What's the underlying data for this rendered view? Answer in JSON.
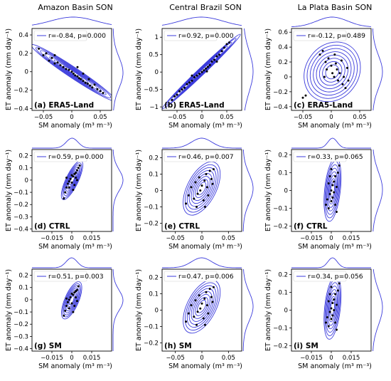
{
  "colors": {
    "contour": "#3b3bdc",
    "marginal": "#3b3bdc",
    "points": "#000000"
  },
  "chart_data": {
    "type": "scatter",
    "grid": false,
    "column_titles": [
      "Amazon Basin SON",
      "Central Brazil SON",
      "La Plata Basin SON"
    ],
    "xlabel": "SM anomaly (m³ m⁻³)",
    "ylabel": "ET anomaly (mm day⁻¹)",
    "legend_location": "upper-left",
    "panels": [
      {
        "label": "(a) ERA5-Land",
        "legend": "r=-0.84, p=0.000",
        "xlim": [
          -0.07,
          0.07
        ],
        "xticks": [
          -0.05,
          0,
          0.05
        ],
        "xticklabels": [
          "−0.05",
          "0",
          "0.05"
        ],
        "ylim": [
          -0.42,
          0.47
        ],
        "yticks": [
          -0.4,
          -0.2,
          0,
          0.2,
          0.4
        ],
        "yticklabels": [
          "−0.4",
          "−0.2",
          "0",
          "0.2",
          "0.4"
        ],
        "points": [
          [
            -0.058,
            0.25
          ],
          [
            -0.05,
            0.18
          ],
          [
            -0.045,
            0.2
          ],
          [
            -0.04,
            0.12
          ],
          [
            -0.035,
            0.15
          ],
          [
            -0.03,
            0.09
          ],
          [
            -0.025,
            0.1
          ],
          [
            -0.02,
            0.07
          ],
          [
            -0.015,
            0.05
          ],
          [
            -0.01,
            0.03
          ],
          [
            -0.005,
            0.02
          ],
          [
            0.0,
            0.0
          ],
          [
            0.003,
            -0.02
          ],
          [
            0.006,
            -0.04
          ],
          [
            0.01,
            -0.05
          ],
          [
            0.013,
            -0.07
          ],
          [
            0.016,
            -0.08
          ],
          [
            0.02,
            -0.1
          ],
          [
            0.024,
            -0.12
          ],
          [
            0.028,
            -0.13
          ],
          [
            0.032,
            -0.15
          ],
          [
            0.036,
            -0.17
          ],
          [
            0.04,
            -0.14
          ],
          [
            0.045,
            -0.19
          ],
          [
            0.05,
            -0.21
          ],
          [
            0.055,
            -0.23
          ],
          [
            -0.03,
            0.18
          ],
          [
            0.01,
            0.05
          ],
          [
            0.02,
            -0.02
          ],
          [
            0.03,
            -0.08
          ]
        ]
      },
      {
        "label": "(b) ERA5-Land",
        "legend": "r=0.92, p=0.000",
        "xlim": [
          -0.08,
          0.08
        ],
        "xticks": [
          -0.05,
          0,
          0.05
        ],
        "xticklabels": [
          "−0.05",
          "0",
          "0.05"
        ],
        "ylim": [
          -1.1,
          1.25
        ],
        "yticks": [
          -1,
          -0.5,
          0,
          0.5,
          1
        ],
        "yticklabels": [
          "−1",
          "−0.5",
          "0",
          "0.5",
          "1"
        ],
        "points": [
          [
            -0.06,
            -0.8
          ],
          [
            -0.055,
            -0.7
          ],
          [
            -0.05,
            -0.65
          ],
          [
            -0.045,
            -0.55
          ],
          [
            -0.04,
            -0.5
          ],
          [
            -0.035,
            -0.45
          ],
          [
            -0.03,
            -0.35
          ],
          [
            -0.025,
            -0.3
          ],
          [
            -0.02,
            -0.25
          ],
          [
            -0.015,
            -0.15
          ],
          [
            -0.01,
            -0.1
          ],
          [
            -0.005,
            -0.05
          ],
          [
            0.0,
            0.0
          ],
          [
            0.004,
            0.05
          ],
          [
            0.008,
            0.1
          ],
          [
            0.012,
            0.15
          ],
          [
            0.016,
            0.2
          ],
          [
            0.02,
            0.3
          ],
          [
            0.025,
            0.35
          ],
          [
            0.03,
            0.45
          ],
          [
            0.035,
            0.5
          ],
          [
            0.04,
            0.6
          ],
          [
            0.045,
            0.7
          ],
          [
            0.05,
            0.8
          ],
          [
            0.055,
            0.85
          ],
          [
            -0.02,
            -0.1
          ],
          [
            0.01,
            0.02
          ],
          [
            0.03,
            0.3
          ]
        ]
      },
      {
        "label": "(c) ERA5-Land",
        "legend": "r=-0.12, p=0.489",
        "xlim": [
          -0.07,
          0.07
        ],
        "xticks": [
          -0.05,
          0,
          0.05
        ],
        "xticklabels": [
          "−0.05",
          "0",
          "0.05"
        ],
        "ylim": [
          -0.45,
          0.65
        ],
        "yticks": [
          -0.4,
          -0.2,
          0,
          0.2,
          0.4,
          0.6
        ],
        "yticklabels": [
          "−0.4",
          "−0.2",
          "0",
          "0.2",
          "0.4",
          "0.6"
        ],
        "points": [
          [
            -0.05,
            -0.28
          ],
          [
            -0.045,
            -0.25
          ],
          [
            -0.02,
            0.3
          ],
          [
            -0.015,
            0.35
          ],
          [
            -0.01,
            0.2
          ],
          [
            -0.008,
            0.1
          ],
          [
            -0.005,
            0.25
          ],
          [
            0.0,
            0.15
          ],
          [
            0.002,
            0.05
          ],
          [
            0.005,
            0.0
          ],
          [
            0.008,
            0.18
          ],
          [
            0.01,
            0.1
          ],
          [
            0.012,
            -0.05
          ],
          [
            0.015,
            0.05
          ],
          [
            0.018,
            0.22
          ],
          [
            0.02,
            -0.1
          ],
          [
            0.022,
            0.0
          ],
          [
            0.025,
            -0.15
          ],
          [
            0.03,
            -0.05
          ],
          [
            -0.012,
            0.0
          ],
          [
            0.006,
            0.3
          ],
          [
            0.028,
            0.12
          ]
        ]
      },
      {
        "label": "(d) CTRL",
        "legend": "r=0.59, p=0.000",
        "xlim": [
          -0.03,
          0.03
        ],
        "xticks": [
          -0.015,
          0,
          0.015
        ],
        "xticklabels": [
          "−0.015",
          "0",
          "0.015"
        ],
        "ylim": [
          -0.42,
          0.25
        ],
        "yticks": [
          -0.4,
          -0.3,
          -0.2,
          -0.1,
          0,
          0.1,
          0.2
        ],
        "yticklabels": [
          "−0.4",
          "−0.3",
          "−0.2",
          "−0.1",
          "0",
          "0.1",
          "0.2"
        ],
        "points": [
          [
            -0.006,
            -0.15
          ],
          [
            -0.005,
            -0.1
          ],
          [
            -0.004,
            -0.06
          ],
          [
            -0.003,
            -0.03
          ],
          [
            -0.002,
            -0.01
          ],
          [
            -0.001,
            0.01
          ],
          [
            0.0,
            -0.02
          ],
          [
            0.001,
            0.03
          ],
          [
            0.002,
            0.05
          ],
          [
            0.003,
            0.02
          ],
          [
            0.004,
            0.08
          ],
          [
            0.005,
            0.1
          ],
          [
            0.006,
            0.12
          ],
          [
            -0.002,
            -0.06
          ],
          [
            0.0,
            0.04
          ],
          [
            0.002,
            -0.04
          ],
          [
            0.003,
            0.06
          ],
          [
            -0.004,
            0.02
          ],
          [
            0.001,
            -0.08
          ],
          [
            0.004,
            0.0
          ]
        ]
      },
      {
        "label": "(e) CTRL",
        "legend": "r=0.46, p=0.007",
        "xlim": [
          -0.075,
          0.075
        ],
        "xticks": [
          -0.05,
          0,
          0.05
        ],
        "xticklabels": [
          "−0.05",
          "0",
          "0.05"
        ],
        "ylim": [
          -0.25,
          0.25
        ],
        "yticks": [
          -0.2,
          -0.1,
          0,
          0.1,
          0.2
        ],
        "yticklabels": [
          "−0.2",
          "−0.1",
          "0",
          "0.1",
          "0.2"
        ],
        "points": [
          [
            -0.03,
            -0.08
          ],
          [
            -0.025,
            -0.03
          ],
          [
            -0.02,
            0.02
          ],
          [
            -0.015,
            -0.05
          ],
          [
            -0.012,
            0.05
          ],
          [
            -0.008,
            -0.02
          ],
          [
            -0.005,
            0.08
          ],
          [
            -0.003,
            0.0
          ],
          [
            0.0,
            0.03
          ],
          [
            0.003,
            -0.06
          ],
          [
            0.005,
            0.06
          ],
          [
            0.008,
            0.1
          ],
          [
            0.01,
            0.02
          ],
          [
            0.012,
            -0.03
          ],
          [
            0.015,
            0.12
          ],
          [
            0.018,
            0.07
          ],
          [
            0.02,
            0.04
          ],
          [
            0.022,
            0.13
          ],
          [
            -0.01,
            -0.1
          ],
          [
            0.006,
            -0.1
          ]
        ]
      },
      {
        "label": "(f) CTRL",
        "legend": "r=0.33, p=0.065",
        "xlim": [
          -0.03,
          0.03
        ],
        "xticks": [
          -0.015,
          0,
          0.015
        ],
        "xticklabels": [
          "−0.015",
          "0",
          "0.015"
        ],
        "ylim": [
          -0.23,
          0.23
        ],
        "yticks": [
          -0.2,
          -0.1,
          0,
          0.1,
          0.2
        ],
        "yticklabels": [
          "−0.2",
          "−0.1",
          "0",
          "0.1",
          "0.2"
        ],
        "points": [
          [
            -0.004,
            -0.08
          ],
          [
            -0.003,
            -0.05
          ],
          [
            -0.002,
            -0.1
          ],
          [
            -0.001,
            -0.02
          ],
          [
            0.0,
            0.0
          ],
          [
            0.0,
            -0.06
          ],
          [
            0.001,
            0.03
          ],
          [
            0.001,
            -0.04
          ],
          [
            0.002,
            0.05
          ],
          [
            0.002,
            -0.01
          ],
          [
            0.003,
            0.08
          ],
          [
            0.004,
            0.02
          ],
          [
            0.005,
            0.1
          ],
          [
            -0.002,
            0.04
          ],
          [
            0.003,
            -0.08
          ],
          [
            0.006,
            0.14
          ],
          [
            -0.001,
            0.08
          ],
          [
            0.004,
            -0.12
          ],
          [
            0.0,
            0.12
          ]
        ]
      },
      {
        "label": "(g) SM",
        "legend": "r=0.51, p=0.003",
        "xlim": [
          -0.03,
          0.03
        ],
        "xticks": [
          -0.015,
          0,
          0.015
        ],
        "xticklabels": [
          "−0.015",
          "0",
          "0.015"
        ],
        "ylim": [
          -0.42,
          0.25
        ],
        "yticks": [
          -0.4,
          -0.3,
          -0.2,
          -0.1,
          0,
          0.1,
          0.2
        ],
        "yticklabels": [
          "−0.4",
          "−0.3",
          "−0.2",
          "−0.1",
          "0",
          "0.1",
          "0.2"
        ],
        "points": [
          [
            -0.006,
            -0.13
          ],
          [
            -0.005,
            -0.09
          ],
          [
            -0.004,
            -0.05
          ],
          [
            -0.003,
            -0.02
          ],
          [
            -0.002,
            0.0
          ],
          [
            -0.001,
            0.02
          ],
          [
            0.0,
            -0.03
          ],
          [
            0.001,
            0.04
          ],
          [
            0.002,
            0.06
          ],
          [
            0.003,
            0.02
          ],
          [
            0.004,
            0.08
          ],
          [
            0.005,
            0.11
          ],
          [
            -0.002,
            -0.07
          ],
          [
            0.0,
            0.05
          ],
          [
            0.002,
            -0.05
          ],
          [
            0.003,
            0.07
          ],
          [
            -0.004,
            0.01
          ],
          [
            0.001,
            -0.1
          ],
          [
            0.004,
            -0.01
          ]
        ]
      },
      {
        "label": "(h) SM",
        "legend": "r=0.47, p=0.006",
        "xlim": [
          -0.075,
          0.075
        ],
        "xticks": [
          -0.05,
          0,
          0.05
        ],
        "xticklabels": [
          "−0.05",
          "0",
          "0.05"
        ],
        "ylim": [
          -0.25,
          0.25
        ],
        "yticks": [
          -0.2,
          -0.1,
          0,
          0.1,
          0.2
        ],
        "yticklabels": [
          "−0.2",
          "−0.1",
          "0",
          "0.1",
          "0.2"
        ],
        "points": [
          [
            -0.03,
            -0.07
          ],
          [
            -0.025,
            -0.02
          ],
          [
            -0.02,
            0.03
          ],
          [
            -0.015,
            -0.04
          ],
          [
            -0.012,
            0.06
          ],
          [
            -0.008,
            -0.01
          ],
          [
            -0.005,
            0.09
          ],
          [
            -0.003,
            0.01
          ],
          [
            0.0,
            0.04
          ],
          [
            0.003,
            -0.05
          ],
          [
            0.005,
            0.07
          ],
          [
            0.008,
            0.11
          ],
          [
            0.01,
            0.03
          ],
          [
            0.012,
            -0.02
          ],
          [
            0.015,
            0.13
          ],
          [
            0.018,
            0.08
          ],
          [
            0.02,
            0.05
          ],
          [
            0.022,
            0.14
          ],
          [
            -0.01,
            -0.09
          ],
          [
            0.006,
            -0.09
          ]
        ]
      },
      {
        "label": "(i) SM",
        "legend": "r=0.34, p=0.056",
        "xlim": [
          -0.03,
          0.03
        ],
        "xticks": [
          -0.015,
          0,
          0.015
        ],
        "xticklabels": [
          "−0.015",
          "0",
          "0.015"
        ],
        "ylim": [
          -0.23,
          0.23
        ],
        "yticks": [
          -0.2,
          -0.1,
          0,
          0.1,
          0.2
        ],
        "yticklabels": [
          "−0.2",
          "−0.1",
          "0",
          "0.1",
          "0.2"
        ],
        "points": [
          [
            -0.004,
            -0.07
          ],
          [
            -0.003,
            -0.04
          ],
          [
            -0.002,
            -0.09
          ],
          [
            -0.001,
            -0.01
          ],
          [
            0.0,
            0.01
          ],
          [
            0.0,
            -0.05
          ],
          [
            0.001,
            0.04
          ],
          [
            0.001,
            -0.03
          ],
          [
            0.002,
            0.06
          ],
          [
            0.002,
            0.0
          ],
          [
            0.003,
            0.09
          ],
          [
            0.004,
            0.03
          ],
          [
            0.005,
            0.11
          ],
          [
            -0.002,
            0.05
          ],
          [
            0.003,
            -0.07
          ],
          [
            0.006,
            0.15
          ],
          [
            -0.001,
            0.09
          ],
          [
            0.004,
            -0.11
          ],
          [
            0.0,
            0.13
          ]
        ]
      }
    ]
  }
}
